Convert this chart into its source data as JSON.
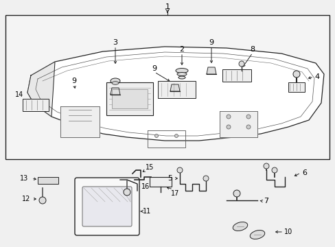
{
  "bg_color": "#f0f0f0",
  "box_bg": "#f0f0f0",
  "fig_width": 4.89,
  "fig_height": 3.6,
  "dpi": 100,
  "line_color": "#222222",
  "text_color": "#000000",
  "part_fill": "#ffffff",
  "part_edge": "#222222"
}
